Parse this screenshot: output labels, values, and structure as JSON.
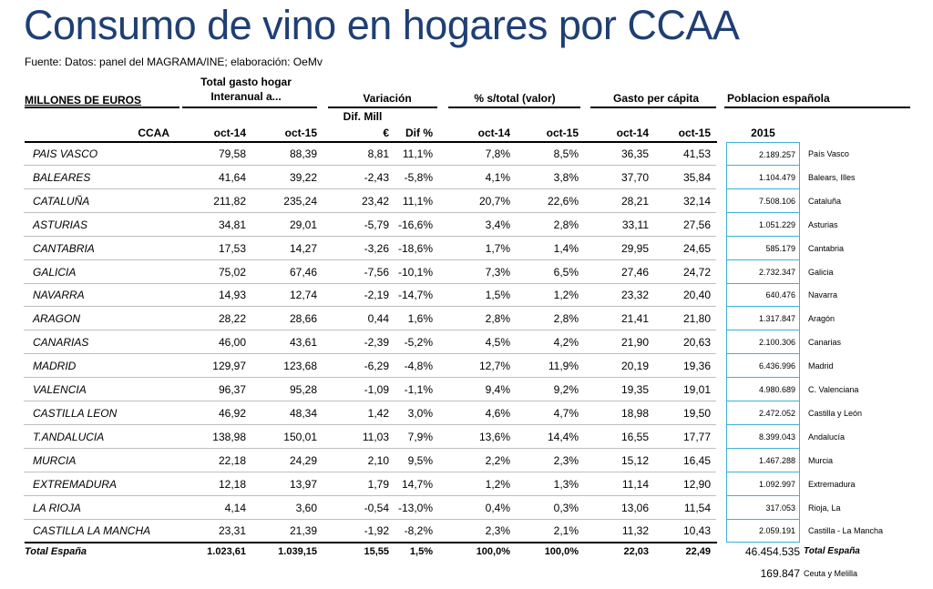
{
  "title": "Consumo de vino en hogares por CCAA",
  "source": "Fuente: Datos: panel del MAGRAMA/INE; elaboración: OeMv",
  "headers": {
    "units": "MILLONES DE EUROS",
    "total_gasto_1": "Total gasto hogar",
    "total_gasto_2": "Interanual a...",
    "variacion": "Variación",
    "pct_total": "% s/total (valor)",
    "gasto_per_capita": "Gasto per cápita",
    "poblacion": "Poblacion española",
    "dif_mill_1": "Dif. Mill",
    "dif_mill_2": "€",
    "dif_pct": "Dif %",
    "ccaa": "CCAA",
    "oct14_a": "oct-14",
    "oct15_a": "oct-15",
    "oct14_b": "oct-14",
    "oct15_b": "oct-15",
    "oct14_c": "oct-14",
    "oct15_c": "oct-15",
    "year_2015": "2015"
  },
  "rows": [
    {
      "ccaa": "PAIS VASCO",
      "g14": "79,58",
      "g15": "88,39",
      "dif": "8,81",
      "difp": "11,1%",
      "p14": "7,8%",
      "p15": "8,5%",
      "c14": "36,35",
      "c15": "41,53",
      "pop": "2.189.257",
      "popname": "País Vasco"
    },
    {
      "ccaa": "BALEARES",
      "g14": "41,64",
      "g15": "39,22",
      "dif": "-2,43",
      "difp": "-5,8%",
      "p14": "4,1%",
      "p15": "3,8%",
      "c14": "37,70",
      "c15": "35,84",
      "pop": "1.104.479",
      "popname": "Balears, Illes"
    },
    {
      "ccaa": "CATALUÑA",
      "g14": "211,82",
      "g15": "235,24",
      "dif": "23,42",
      "difp": "11,1%",
      "p14": "20,7%",
      "p15": "22,6%",
      "c14": "28,21",
      "c15": "32,14",
      "pop": "7.508.106",
      "popname": "Cataluña"
    },
    {
      "ccaa": "ASTURIAS",
      "g14": "34,81",
      "g15": "29,01",
      "dif": "-5,79",
      "difp": "-16,6%",
      "p14": "3,4%",
      "p15": "2,8%",
      "c14": "33,11",
      "c15": "27,56",
      "pop": "1.051.229",
      "popname": "Asturias"
    },
    {
      "ccaa": "CANTABRIA",
      "g14": "17,53",
      "g15": "14,27",
      "dif": "-3,26",
      "difp": "-18,6%",
      "p14": "1,7%",
      "p15": "1,4%",
      "c14": "29,95",
      "c15": "24,65",
      "pop": "585.179",
      "popname": "Cantabria"
    },
    {
      "ccaa": "GALICIA",
      "g14": "75,02",
      "g15": "67,46",
      "dif": "-7,56",
      "difp": "-10,1%",
      "p14": "7,3%",
      "p15": "6,5%",
      "c14": "27,46",
      "c15": "24,72",
      "pop": "2.732.347",
      "popname": "Galicia"
    },
    {
      "ccaa": "NAVARRA",
      "g14": "14,93",
      "g15": "12,74",
      "dif": "-2,19",
      "difp": "-14,7%",
      "p14": "1,5%",
      "p15": "1,2%",
      "c14": "23,32",
      "c15": "20,40",
      "pop": "640.476",
      "popname": "Navarra"
    },
    {
      "ccaa": "ARAGON",
      "g14": "28,22",
      "g15": "28,66",
      "dif": "0,44",
      "difp": "1,6%",
      "p14": "2,8%",
      "p15": "2,8%",
      "c14": "21,41",
      "c15": "21,80",
      "pop": "1.317.847",
      "popname": "Aragón"
    },
    {
      "ccaa": "CANARIAS",
      "g14": "46,00",
      "g15": "43,61",
      "dif": "-2,39",
      "difp": "-5,2%",
      "p14": "4,5%",
      "p15": "4,2%",
      "c14": "21,90",
      "c15": "20,63",
      "pop": "2.100.306",
      "popname": "Canarias"
    },
    {
      "ccaa": "MADRID",
      "g14": "129,97",
      "g15": "123,68",
      "dif": "-6,29",
      "difp": "-4,8%",
      "p14": "12,7%",
      "p15": "11,9%",
      "c14": "20,19",
      "c15": "19,36",
      "pop": "6.436.996",
      "popname": "Madrid"
    },
    {
      "ccaa": "VALENCIA",
      "g14": "96,37",
      "g15": "95,28",
      "dif": "-1,09",
      "difp": "-1,1%",
      "p14": "9,4%",
      "p15": "9,2%",
      "c14": "19,35",
      "c15": "19,01",
      "pop": "4.980.689",
      "popname": "C. Valenciana"
    },
    {
      "ccaa": "CASTILLA LEON",
      "g14": "46,92",
      "g15": "48,34",
      "dif": "1,42",
      "difp": "3,0%",
      "p14": "4,6%",
      "p15": "4,7%",
      "c14": "18,98",
      "c15": "19,50",
      "pop": "2.472.052",
      "popname": "Castilla y León"
    },
    {
      "ccaa": "T.ANDALUCIA",
      "g14": "138,98",
      "g15": "150,01",
      "dif": "11,03",
      "difp": "7,9%",
      "p14": "13,6%",
      "p15": "14,4%",
      "c14": "16,55",
      "c15": "17,77",
      "pop": "8.399.043",
      "popname": "Andalucía"
    },
    {
      "ccaa": "MURCIA",
      "g14": "22,18",
      "g15": "24,29",
      "dif": "2,10",
      "difp": "9,5%",
      "p14": "2,2%",
      "p15": "2,3%",
      "c14": "15,12",
      "c15": "16,45",
      "pop": "1.467.288",
      "popname": "Murcia"
    },
    {
      "ccaa": "EXTREMADURA",
      "g14": "12,18",
      "g15": "13,97",
      "dif": "1,79",
      "difp": "14,7%",
      "p14": "1,2%",
      "p15": "1,3%",
      "c14": "11,14",
      "c15": "12,90",
      "pop": "1.092.997",
      "popname": "Extremadura"
    },
    {
      "ccaa": "LA RIOJA",
      "g14": "4,14",
      "g15": "3,60",
      "dif": "-0,54",
      "difp": "-13,0%",
      "p14": "0,4%",
      "p15": "0,3%",
      "c14": "13,06",
      "c15": "11,54",
      "pop": "317.053",
      "popname": "Rioja, La"
    },
    {
      "ccaa": "CASTILLA LA MANCHA",
      "g14": "23,31",
      "g15": "21,39",
      "dif": "-1,92",
      "difp": "-8,2%",
      "p14": "2,3%",
      "p15": "2,1%",
      "c14": "11,32",
      "c15": "10,43",
      "pop": "2.059.191",
      "popname": "Castilla - La Mancha"
    }
  ],
  "total": {
    "ccaa": "Total España",
    "g14": "1.023,61",
    "g15": "1.039,15",
    "dif": "15,55",
    "difp": "1,5%",
    "p14": "100,0%",
    "p15": "100,0%",
    "c14": "22,03",
    "c15": "22,49",
    "pop": "46.454.535",
    "popname": "Total España"
  },
  "ceuta": {
    "pop": "169.847",
    "popname": "Ceuta y Melilla"
  },
  "colors": {
    "title": "#1f3f74",
    "pop_border": "#3fb0d8"
  }
}
